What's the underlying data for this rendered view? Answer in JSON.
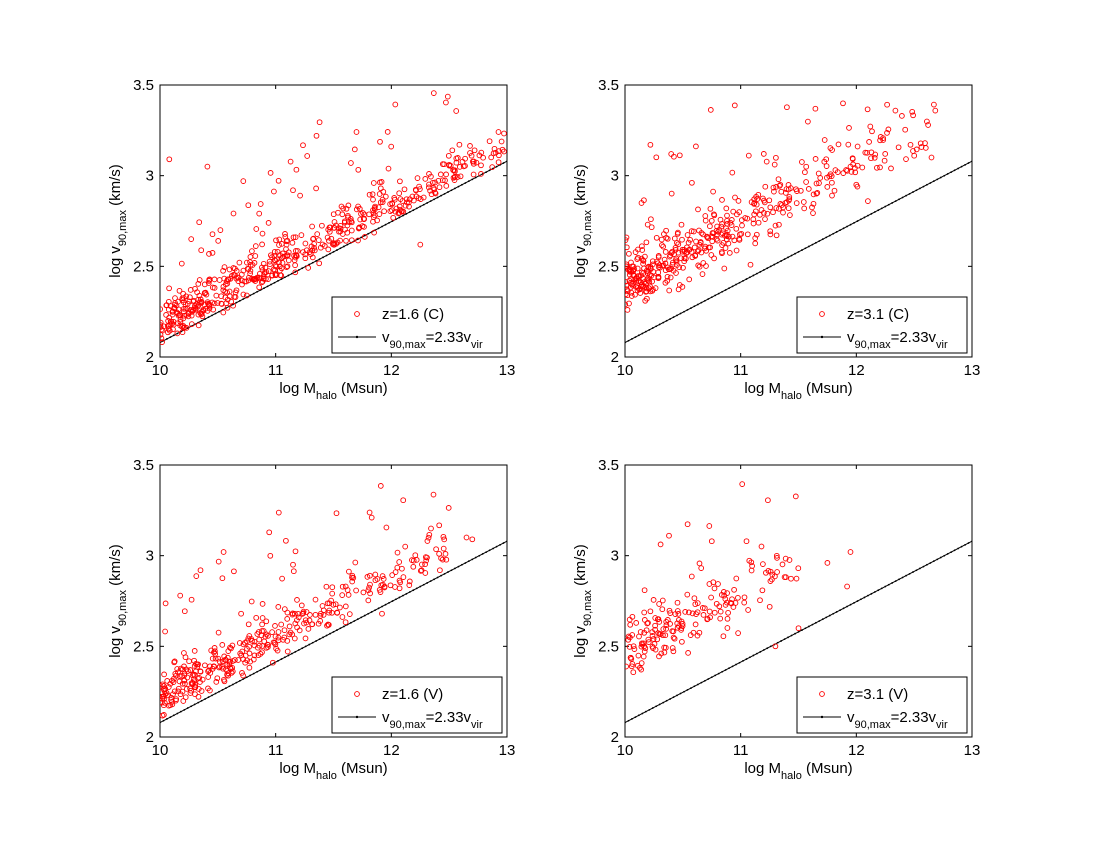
{
  "chart_data": [
    {
      "type": "scatter",
      "xlim": [
        10,
        13
      ],
      "ylim": [
        2,
        3.5
      ],
      "xticks": [
        "10",
        "11",
        "12",
        "13"
      ],
      "yticks": [
        "2",
        "2.5",
        "3",
        "3.5"
      ],
      "xlabel": {
        "pre": "log M",
        "sub": "halo",
        "post": " (Msun)"
      },
      "ylabel": {
        "pre": "log v",
        "sub": "90,max",
        "post": " (km/s)"
      },
      "legend_position": "bottom-right",
      "grid": false,
      "series": [
        {
          "name": "z=1.6 (C)",
          "marker": "open-circle",
          "color": "#ff0000",
          "generate": {
            "n": 560,
            "x0": 10.0,
            "x1": 13.0,
            "density_slope": -0.7,
            "spread": 0.085,
            "offset": 0.04,
            "outliers": 0.08,
            "seed": 11
          },
          "points": [
            [
              10.08,
              3.09
            ],
            [
              10.41,
              3.05
            ],
            [
              10.72,
              2.97
            ],
            [
              11.65,
              3.07
            ],
            [
              12.85,
              3.19
            ],
            [
              12.72,
              3.14
            ],
            [
              10.27,
              2.65
            ],
            [
              11.35,
              2.93
            ],
            [
              12.25,
              2.62
            ]
          ]
        },
        {
          "name": "v90,max=2.33vvir",
          "label_parts": [
            {
              "t": "v",
              "s": ""
            },
            {
              "t": "90,max",
              "s": "sub"
            },
            {
              "t": "=2.33v",
              "s": ""
            },
            {
              "t": "vir",
              "s": "sub"
            }
          ],
          "marker": "line-dot",
          "color": "#000000",
          "line": {
            "slope": 0.3333,
            "intercept": -1.2533
          }
        }
      ]
    },
    {
      "type": "scatter",
      "xlim": [
        10,
        13
      ],
      "ylim": [
        2,
        3.5
      ],
      "xticks": [
        "10",
        "11",
        "12",
        "13"
      ],
      "yticks": [
        "2",
        "2.5",
        "3",
        "3.5"
      ],
      "xlabel": {
        "pre": "log M",
        "sub": "halo",
        "post": " (Msun)"
      },
      "ylabel": {
        "pre": "log v",
        "sub": "90,max",
        "post": " (km/s)"
      },
      "legend_position": "bottom-right",
      "grid": false,
      "series": [
        {
          "name": "z=3.1 (C)",
          "marker": "open-circle",
          "color": "#ff0000",
          "generate": {
            "n": 470,
            "x0": 10.0,
            "x1": 12.7,
            "density_slope": -0.9,
            "spread": 0.13,
            "offset": 0.24,
            "outliers": 0.05,
            "seed": 23
          },
          "points": [
            [
              10.22,
              3.17
            ],
            [
              11.2,
              3.12
            ],
            [
              12.5,
              3.11
            ],
            [
              12.65,
              3.1
            ],
            [
              12.3,
              3.04
            ],
            [
              12.1,
              2.86
            ],
            [
              12.0,
              2.95
            ]
          ]
        },
        {
          "name": "v90,max=2.33vvir",
          "label_parts": [
            {
              "t": "v",
              "s": ""
            },
            {
              "t": "90,max",
              "s": "sub"
            },
            {
              "t": "=2.33v",
              "s": ""
            },
            {
              "t": "vir",
              "s": "sub"
            }
          ],
          "marker": "line-dot",
          "color": "#000000",
          "line": {
            "slope": 0.3333,
            "intercept": -1.2533
          }
        }
      ]
    },
    {
      "type": "scatter",
      "xlim": [
        10,
        13
      ],
      "ylim": [
        2,
        3.5
      ],
      "xticks": [
        "10",
        "11",
        "12",
        "13"
      ],
      "yticks": [
        "2",
        "2.5",
        "3",
        "3.5"
      ],
      "xlabel": {
        "pre": "log M",
        "sub": "halo",
        "post": " (Msun)"
      },
      "ylabel": {
        "pre": "log v",
        "sub": "90,max",
        "post": " (km/s)"
      },
      "legend_position": "bottom-right",
      "grid": false,
      "series": [
        {
          "name": "z=1.6 (V)",
          "marker": "open-circle",
          "color": "#ff0000",
          "generate": {
            "n": 390,
            "x0": 10.0,
            "x1": 12.5,
            "density_slope": -0.6,
            "spread": 0.095,
            "offset": 0.08,
            "outliers": 0.06,
            "seed": 37
          },
          "points": [
            [
              10.55,
              3.02
            ],
            [
              12.12,
              3.05
            ],
            [
              12.65,
              3.1
            ],
            [
              12.7,
              3.09
            ],
            [
              11.15,
              2.95
            ],
            [
              10.35,
              2.92
            ],
            [
              12.42,
              2.92
            ]
          ]
        },
        {
          "name": "v90,max=2.33vvir",
          "label_parts": [
            {
              "t": "v",
              "s": ""
            },
            {
              "t": "90,max",
              "s": "sub"
            },
            {
              "t": "=2.33v",
              "s": ""
            },
            {
              "t": "vir",
              "s": "sub"
            }
          ],
          "marker": "line-dot",
          "color": "#000000",
          "line": {
            "slope": 0.3333,
            "intercept": -1.2533
          }
        }
      ]
    },
    {
      "type": "scatter",
      "xlim": [
        10,
        13
      ],
      "ylim": [
        2,
        3.5
      ],
      "xticks": [
        "10",
        "11",
        "12",
        "13"
      ],
      "yticks": [
        "2",
        "2.5",
        "3",
        "3.5"
      ],
      "xlabel": {
        "pre": "log M",
        "sub": "halo",
        "post": " (Msun)"
      },
      "ylabel": {
        "pre": "log v",
        "sub": "90,max",
        "post": " (km/s)"
      },
      "legend_position": "bottom-right",
      "grid": false,
      "series": [
        {
          "name": "z=3.1 (V)",
          "marker": "open-circle",
          "color": "#ff0000",
          "generate": {
            "n": 190,
            "x0": 10.0,
            "x1": 11.5,
            "density_slope": -0.5,
            "spread": 0.13,
            "offset": 0.32,
            "outliers": 0.04,
            "seed": 53
          },
          "points": [
            [
              10.38,
              3.11
            ],
            [
              10.75,
              3.08
            ],
            [
              11.05,
              3.08
            ],
            [
              11.95,
              3.02
            ],
            [
              11.92,
              2.83
            ],
            [
              11.75,
              2.96
            ],
            [
              11.5,
              2.6
            ],
            [
              11.3,
              2.5
            ]
          ]
        },
        {
          "name": "v90,max=2.33vvir",
          "label_parts": [
            {
              "t": "v",
              "s": ""
            },
            {
              "t": "90,max",
              "s": "sub"
            },
            {
              "t": "=2.33v",
              "s": ""
            },
            {
              "t": "vir",
              "s": "sub"
            }
          ],
          "marker": "line-dot",
          "color": "#000000",
          "line": {
            "slope": 0.3333,
            "intercept": -1.2533
          }
        }
      ]
    }
  ]
}
